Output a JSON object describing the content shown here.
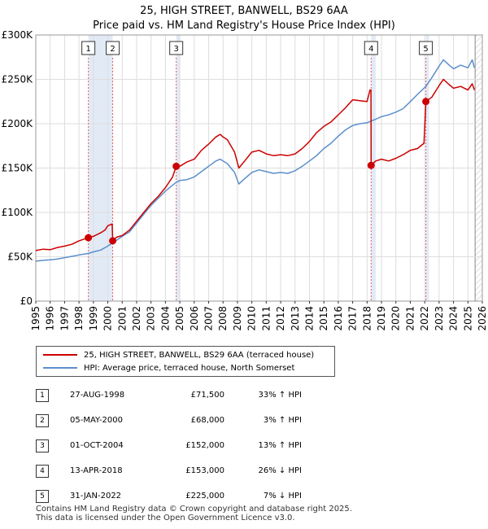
{
  "title_line1": "25, HIGH STREET, BANWELL, BS29 6AA",
  "title_line2": "Price paid vs. HM Land Registry's House Price Index (HPI)",
  "chart_data": {
    "type": "line",
    "xlim": [
      1995,
      2026
    ],
    "ylim": [
      0,
      300000
    ],
    "yticks": [
      {
        "v": 0,
        "label": "£0"
      },
      {
        "v": 50000,
        "label": "£50K"
      },
      {
        "v": 100000,
        "label": "£100K"
      },
      {
        "v": 150000,
        "label": "£150K"
      },
      {
        "v": 200000,
        "label": "£200K"
      },
      {
        "v": 250000,
        "label": "£250K"
      },
      {
        "v": 300000,
        "label": "£300K"
      }
    ],
    "xticks": [
      "1995",
      "1996",
      "1997",
      "1998",
      "1999",
      "2000",
      "2001",
      "2002",
      "2003",
      "2004",
      "2005",
      "2006",
      "2007",
      "2008",
      "2009",
      "2010",
      "2011",
      "2012",
      "2013",
      "2014",
      "2015",
      "2016",
      "2017",
      "2018",
      "2019",
      "2020",
      "2021",
      "2022",
      "2023",
      "2024",
      "2025",
      "2026"
    ],
    "series": [
      {
        "name": "25, HIGH STREET, BANWELL, BS29 6AA (terraced house)",
        "color": "#cc0000",
        "points": [
          [
            1995.0,
            57000
          ],
          [
            1995.5,
            58500
          ],
          [
            1996.0,
            58000
          ],
          [
            1996.5,
            60500
          ],
          [
            1997.0,
            62000
          ],
          [
            1997.5,
            64000
          ],
          [
            1998.0,
            68000
          ],
          [
            1998.65,
            71500
          ],
          [
            1999.0,
            73000
          ],
          [
            1999.5,
            77000
          ],
          [
            1999.8,
            80000
          ],
          [
            2000.0,
            85000
          ],
          [
            2000.3,
            87000
          ],
          [
            2000.34,
            68000
          ],
          [
            2000.6,
            72000
          ],
          [
            2001.0,
            74000
          ],
          [
            2001.5,
            80000
          ],
          [
            2002.0,
            90000
          ],
          [
            2002.5,
            100000
          ],
          [
            2003.0,
            110000
          ],
          [
            2003.5,
            118000
          ],
          [
            2004.0,
            128000
          ],
          [
            2004.5,
            140000
          ],
          [
            2004.75,
            152000
          ],
          [
            2005.0,
            152000
          ],
          [
            2005.5,
            157000
          ],
          [
            2006.0,
            160000
          ],
          [
            2006.5,
            170000
          ],
          [
            2007.0,
            177000
          ],
          [
            2007.5,
            185000
          ],
          [
            2007.8,
            188000
          ],
          [
            2008.0,
            185000
          ],
          [
            2008.3,
            182000
          ],
          [
            2008.8,
            168000
          ],
          [
            2009.1,
            150000
          ],
          [
            2009.5,
            158000
          ],
          [
            2010.0,
            168000
          ],
          [
            2010.5,
            170000
          ],
          [
            2011.0,
            166000
          ],
          [
            2011.5,
            164000
          ],
          [
            2012.0,
            165000
          ],
          [
            2012.5,
            164000
          ],
          [
            2013.0,
            166000
          ],
          [
            2013.5,
            172000
          ],
          [
            2014.0,
            180000
          ],
          [
            2014.5,
            190000
          ],
          [
            2015.0,
            197000
          ],
          [
            2015.5,
            202000
          ],
          [
            2016.0,
            210000
          ],
          [
            2016.5,
            218000
          ],
          [
            2017.0,
            227000
          ],
          [
            2017.5,
            226000
          ],
          [
            2018.0,
            225000
          ],
          [
            2018.2,
            238000
          ],
          [
            2018.27,
            238000
          ],
          [
            2018.28,
            153000
          ],
          [
            2018.6,
            158000
          ],
          [
            2019.0,
            160000
          ],
          [
            2019.5,
            158000
          ],
          [
            2020.0,
            161000
          ],
          [
            2020.5,
            165000
          ],
          [
            2021.0,
            170000
          ],
          [
            2021.5,
            172000
          ],
          [
            2021.95,
            178000
          ],
          [
            2022.08,
            225000
          ],
          [
            2022.5,
            230000
          ],
          [
            2023.0,
            243000
          ],
          [
            2023.3,
            250000
          ],
          [
            2023.7,
            244000
          ],
          [
            2024.0,
            240000
          ],
          [
            2024.5,
            242000
          ],
          [
            2025.0,
            238000
          ],
          [
            2025.3,
            245000
          ],
          [
            2025.45,
            238000
          ]
        ]
      },
      {
        "name": "HPI: Average price, terraced house, North Somerset",
        "color": "#5b8fcc",
        "points": [
          [
            1995.0,
            45000
          ],
          [
            1995.5,
            46000
          ],
          [
            1996.0,
            46500
          ],
          [
            1996.5,
            47500
          ],
          [
            1997.0,
            49000
          ],
          [
            1997.5,
            50500
          ],
          [
            1998.0,
            52000
          ],
          [
            1998.65,
            53800
          ],
          [
            1999.0,
            55500
          ],
          [
            1999.5,
            57500
          ],
          [
            2000.0,
            62000
          ],
          [
            2000.34,
            66000
          ],
          [
            2000.6,
            68500
          ],
          [
            2001.0,
            73000
          ],
          [
            2001.5,
            78000
          ],
          [
            2002.0,
            88000
          ],
          [
            2002.5,
            98000
          ],
          [
            2003.0,
            108000
          ],
          [
            2003.5,
            116000
          ],
          [
            2004.0,
            124000
          ],
          [
            2004.75,
            134000
          ],
          [
            2005.0,
            136000
          ],
          [
            2005.5,
            137000
          ],
          [
            2006.0,
            140000
          ],
          [
            2006.5,
            146000
          ],
          [
            2007.0,
            152000
          ],
          [
            2007.5,
            158000
          ],
          [
            2007.8,
            160000
          ],
          [
            2008.3,
            155000
          ],
          [
            2008.8,
            145000
          ],
          [
            2009.1,
            132000
          ],
          [
            2009.5,
            138000
          ],
          [
            2010.0,
            145000
          ],
          [
            2010.5,
            148000
          ],
          [
            2011.0,
            146000
          ],
          [
            2011.5,
            144000
          ],
          [
            2012.0,
            145000
          ],
          [
            2012.5,
            144000
          ],
          [
            2013.0,
            147000
          ],
          [
            2013.5,
            152000
          ],
          [
            2014.0,
            158000
          ],
          [
            2014.5,
            164000
          ],
          [
            2015.0,
            172000
          ],
          [
            2015.5,
            178000
          ],
          [
            2016.0,
            186000
          ],
          [
            2016.5,
            193000
          ],
          [
            2017.0,
            198000
          ],
          [
            2017.5,
            200000
          ],
          [
            2018.0,
            201000
          ],
          [
            2018.28,
            203000
          ],
          [
            2018.6,
            205000
          ],
          [
            2019.0,
            208000
          ],
          [
            2019.5,
            210000
          ],
          [
            2020.0,
            213000
          ],
          [
            2020.5,
            217000
          ],
          [
            2021.0,
            225000
          ],
          [
            2021.5,
            233000
          ],
          [
            2022.08,
            242000
          ],
          [
            2022.5,
            252000
          ],
          [
            2023.0,
            265000
          ],
          [
            2023.3,
            272000
          ],
          [
            2023.7,
            266000
          ],
          [
            2024.0,
            262000
          ],
          [
            2024.5,
            266000
          ],
          [
            2025.0,
            263000
          ],
          [
            2025.3,
            272000
          ],
          [
            2025.45,
            263000
          ]
        ]
      }
    ],
    "sales": [
      {
        "n": "1",
        "x": 1998.65,
        "price": 71500
      },
      {
        "n": "2",
        "x": 2000.34,
        "price": 68000
      },
      {
        "n": "3",
        "x": 2004.75,
        "price": 152000
      },
      {
        "n": "4",
        "x": 2018.28,
        "price": 153000
      },
      {
        "n": "5",
        "x": 2022.08,
        "price": 225000
      }
    ],
    "shaded_spans": [
      [
        1998.65,
        2000.34
      ],
      [
        2004.75,
        2005.0
      ],
      [
        2018.28,
        2018.6
      ],
      [
        2022.08,
        2022.3
      ]
    ],
    "future_start": 2025.5
  },
  "legend": {
    "series1_label": "25, HIGH STREET, BANWELL, BS29 6AA (terraced house)",
    "series2_label": "HPI: Average price, terraced house, North Somerset"
  },
  "table": [
    {
      "n": "1",
      "date": "27-AUG-1998",
      "price": "£71,500",
      "hpi": "33% ↑ HPI"
    },
    {
      "n": "2",
      "date": "05-MAY-2000",
      "price": "£68,000",
      "hpi": "3% ↑ HPI"
    },
    {
      "n": "3",
      "date": "01-OCT-2004",
      "price": "£152,000",
      "hpi": "13% ↑ HPI"
    },
    {
      "n": "4",
      "date": "13-APR-2018",
      "price": "£153,000",
      "hpi": "26% ↓ HPI"
    },
    {
      "n": "5",
      "date": "31-JAN-2022",
      "price": "£225,000",
      "hpi": "7% ↓ HPI"
    }
  ],
  "footer_line1": "Contains HM Land Registry data © Crown copyright and database right 2025.",
  "footer_line2": "This data is licensed under the Open Government Licence v3.0."
}
